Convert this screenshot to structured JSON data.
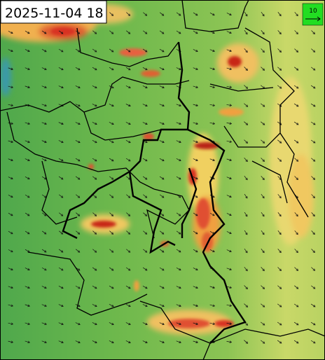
{
  "timestamp": "2025-11-04 18",
  "legend": {
    "label": "10"
  }
}
